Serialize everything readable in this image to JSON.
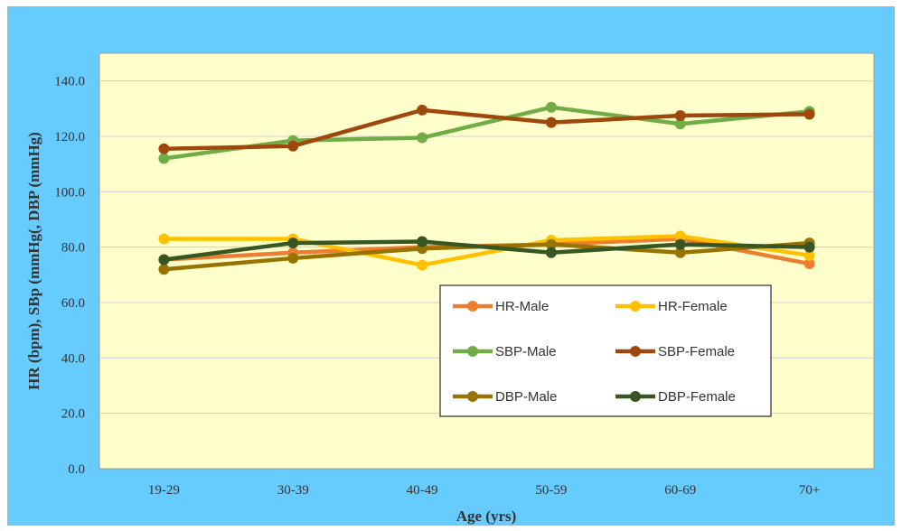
{
  "chart_data": {
    "type": "line",
    "title": "",
    "xlabel": "Age  (yrs)",
    "ylabel": "HR (bpm), SBp (mmHg(, DBP (mmHg)",
    "categories": [
      "19-29",
      "30-39",
      "40-49",
      "50-59",
      "60-69",
      "70+"
    ],
    "ylim": [
      0,
      150
    ],
    "yticks": [
      0,
      20,
      40,
      60,
      80,
      100,
      120,
      140
    ],
    "ytick_labels": [
      "0.0",
      "20.0",
      "40.0",
      "60.0",
      "80.0",
      "100.0",
      "120.0",
      "140.0"
    ],
    "grid": "horizontal",
    "legend_position": "lower-right",
    "plot_background": "#ffffcc",
    "figure_background": "#66ccff",
    "series": [
      {
        "name": "HR-Male",
        "color": "#ed7d31",
        "values": [
          75.5,
          78,
          80,
          81,
          83,
          74
        ]
      },
      {
        "name": "HR-Female",
        "color": "#ffc000",
        "values": [
          83,
          83,
          73.5,
          82.5,
          84,
          77
        ]
      },
      {
        "name": "SBP-Male",
        "color": "#70ad47",
        "values": [
          112,
          118.5,
          119.5,
          130.5,
          124.5,
          129
        ]
      },
      {
        "name": "SBP-Female",
        "color": "#9e480e",
        "values": [
          115.5,
          116.5,
          129.5,
          125,
          127.5,
          128
        ]
      },
      {
        "name": "DBP-Male",
        "color": "#997300",
        "values": [
          72,
          76,
          79.5,
          81,
          78,
          81.5
        ]
      },
      {
        "name": "DBP-Female",
        "color": "#375623",
        "values": [
          75.5,
          81.5,
          82,
          78,
          81,
          80
        ]
      }
    ]
  }
}
